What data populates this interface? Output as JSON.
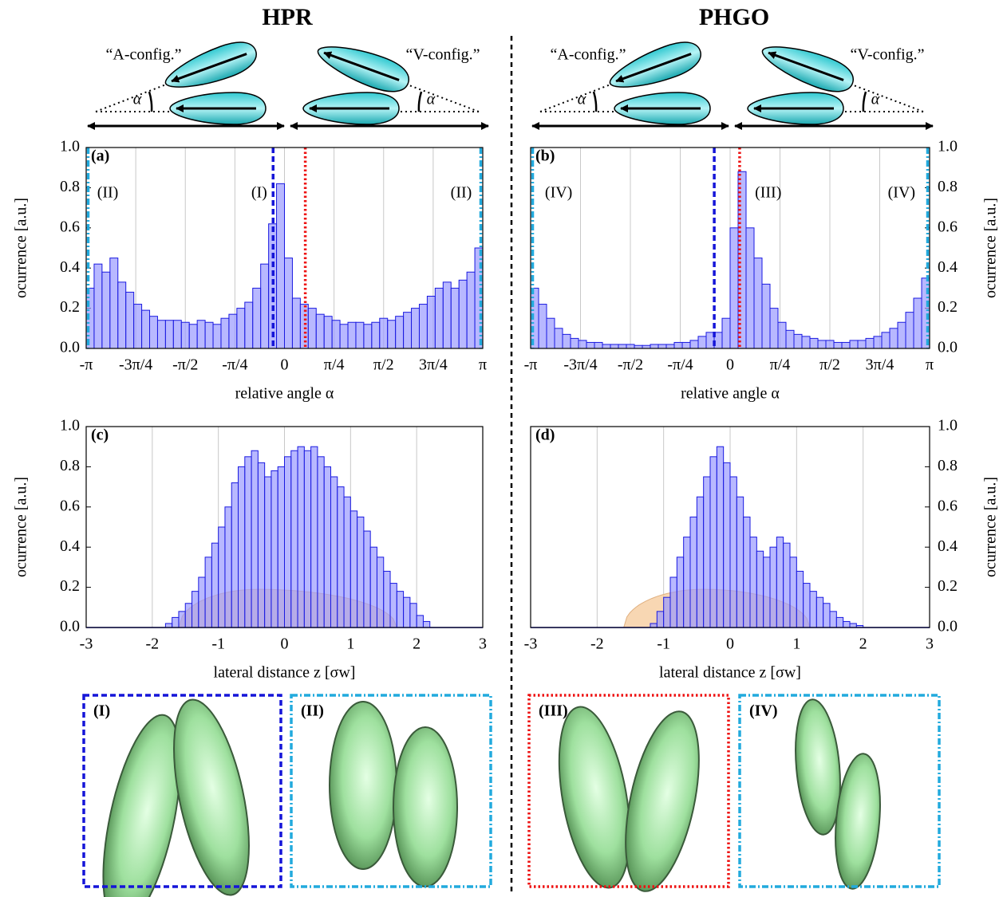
{
  "header": {
    "left": "HPR",
    "right": "PHGO"
  },
  "schematics": [
    {
      "a": "“A-config.”",
      "v": "“V-config.”",
      "alpha": "α"
    },
    {
      "a": "“A-config.”",
      "v": "“V-config.”",
      "alpha": "α"
    }
  ],
  "insets": [
    {
      "label": "(I)",
      "color": "#1515d8",
      "style": "dashed"
    },
    {
      "label": "(II)",
      "color": "#22aadd",
      "style": "dashdot"
    },
    {
      "label": "(III)",
      "color": "#ee1111",
      "style": "dotted"
    },
    {
      "label": "(IV)",
      "color": "#22aadd",
      "style": "dashdot"
    }
  ],
  "chart_data": [
    {
      "type": "histogram",
      "panel_label": "(a)",
      "xlabel": "relative angle α",
      "ylabel": "ocurrence [a.u.]",
      "yaxis": "left",
      "grid": true,
      "color": "#9a9aff",
      "edgecolor": "#1a1ae0",
      "bins": [
        -3.1416,
        -3.0159,
        -2.8903,
        -2.7646,
        -2.6389,
        -2.5133,
        -2.3876,
        -2.2619,
        -2.1363,
        -2.0106,
        -1.885,
        -1.7593,
        -1.6336,
        -1.508,
        -1.3823,
        -1.2566,
        -1.131,
        -1.0053,
        -0.8796,
        -0.754,
        -0.6283,
        -0.5027,
        -0.377,
        -0.2513,
        -0.1257,
        0,
        0.1257,
        0.2513,
        0.377,
        0.5027,
        0.6283,
        0.754,
        0.8796,
        1.0053,
        1.131,
        1.2566,
        1.3823,
        1.508,
        1.6336,
        1.7593,
        1.885,
        2.0106,
        2.1363,
        2.2619,
        2.3876,
        2.5133,
        2.6389,
        2.7646,
        2.8903,
        3.0159,
        3.1416
      ],
      "values": [
        0.3,
        0.42,
        0.38,
        0.45,
        0.33,
        0.28,
        0.22,
        0.19,
        0.16,
        0.14,
        0.14,
        0.14,
        0.13,
        0.12,
        0.14,
        0.13,
        0.12,
        0.15,
        0.17,
        0.2,
        0.23,
        0.3,
        0.42,
        0.62,
        0.82,
        0.45,
        0.25,
        0.22,
        0.2,
        0.17,
        0.16,
        0.14,
        0.12,
        0.13,
        0.13,
        0.12,
        0.13,
        0.15,
        0.14,
        0.16,
        0.18,
        0.2,
        0.22,
        0.26,
        0.3,
        0.33,
        0.3,
        0.34,
        0.38,
        0.5
      ],
      "xlim": [
        -3.1416,
        3.1416
      ],
      "ylim": [
        0,
        1
      ],
      "xticks": [
        {
          "value": -3.1416,
          "label": "-π"
        },
        {
          "value": -2.3562,
          "label": "-3π/4"
        },
        {
          "value": -1.5708,
          "label": "-π/2"
        },
        {
          "value": -0.7854,
          "label": "-π/4"
        },
        0,
        {
          "value": 0.7854,
          "label": "π/4"
        },
        {
          "value": 1.5708,
          "label": "π/2"
        },
        {
          "value": 2.3562,
          "label": "3π/4"
        },
        {
          "value": 3.1416,
          "label": "π"
        }
      ],
      "yticks": [
        {
          "value": 0,
          "label": "0.0"
        },
        {
          "value": 0.2,
          "label": "0.2"
        },
        {
          "value": 0.4,
          "label": "0.4"
        },
        {
          "value": 0.6,
          "label": "0.6"
        },
        {
          "value": 0.8,
          "label": "0.8"
        },
        {
          "value": 1,
          "label": "1.0"
        }
      ],
      "vlines": [
        {
          "value": -0.18,
          "color": "#1515d8",
          "style": "dashed"
        },
        {
          "value": 0.33,
          "color": "#ee1111",
          "style": "dotted"
        },
        {
          "value": -3.11,
          "color": "#22aadd",
          "style": "dashdot"
        },
        {
          "value": 3.11,
          "color": "#22aadd",
          "style": "dashdot"
        }
      ],
      "annotations": [
        {
          "text": "(II)",
          "x": -2.8,
          "y": 0.77,
          "color": "#22aadd"
        },
        {
          "text": "(I)",
          "x": -0.4,
          "y": 0.77,
          "color": "#1515d8"
        },
        {
          "text": "(II)",
          "x": 2.8,
          "y": 0.77,
          "color": "#22aadd"
        }
      ]
    },
    {
      "type": "histogram",
      "panel_label": "(b)",
      "xlabel": "relative angle α",
      "ylabel": "ocurrence [a.u.]",
      "yaxis": "right",
      "grid": true,
      "color": "#9a9aff",
      "edgecolor": "#1a1ae0",
      "bins": [
        -3.1416,
        -3.0159,
        -2.8903,
        -2.7646,
        -2.6389,
        -2.5133,
        -2.3876,
        -2.2619,
        -2.1363,
        -2.0106,
        -1.885,
        -1.7593,
        -1.6336,
        -1.508,
        -1.3823,
        -1.2566,
        -1.131,
        -1.0053,
        -0.8796,
        -0.754,
        -0.6283,
        -0.5027,
        -0.377,
        -0.2513,
        -0.1257,
        0,
        0.1257,
        0.2513,
        0.377,
        0.5027,
        0.6283,
        0.754,
        0.8796,
        1.0053,
        1.131,
        1.2566,
        1.3823,
        1.508,
        1.6336,
        1.7593,
        1.885,
        2.0106,
        2.1363,
        2.2619,
        2.3876,
        2.5133,
        2.6389,
        2.7646,
        2.8903,
        3.0159,
        3.1416
      ],
      "values": [
        0.3,
        0.22,
        0.15,
        0.1,
        0.07,
        0.05,
        0.04,
        0.03,
        0.03,
        0.02,
        0.02,
        0.02,
        0.02,
        0.015,
        0.015,
        0.02,
        0.02,
        0.02,
        0.03,
        0.03,
        0.04,
        0.06,
        0.08,
        0.08,
        0.15,
        0.6,
        0.88,
        0.6,
        0.45,
        0.32,
        0.2,
        0.13,
        0.09,
        0.07,
        0.06,
        0.05,
        0.04,
        0.04,
        0.03,
        0.03,
        0.04,
        0.04,
        0.05,
        0.06,
        0.08,
        0.1,
        0.13,
        0.18,
        0.25,
        0.35
      ],
      "xlim": [
        -3.1416,
        3.1416
      ],
      "ylim": [
        0,
        1
      ],
      "xticks": [
        {
          "value": -3.1416,
          "label": "-π"
        },
        {
          "value": -2.3562,
          "label": "-3π/4"
        },
        {
          "value": -1.5708,
          "label": "-π/2"
        },
        {
          "value": -0.7854,
          "label": "-π/4"
        },
        0,
        {
          "value": 0.7854,
          "label": "π/4"
        },
        {
          "value": 1.5708,
          "label": "π/2"
        },
        {
          "value": 2.3562,
          "label": "3π/4"
        },
        {
          "value": 3.1416,
          "label": "π"
        }
      ],
      "yticks": [
        {
          "value": 0,
          "label": "0.0"
        },
        {
          "value": 0.2,
          "label": "0.2"
        },
        {
          "value": 0.4,
          "label": "0.4"
        },
        {
          "value": 0.6,
          "label": "0.6"
        },
        {
          "value": 0.8,
          "label": "0.8"
        },
        {
          "value": 1,
          "label": "1.0"
        }
      ],
      "vlines": [
        {
          "value": -0.25,
          "color": "#1515d8",
          "style": "dashed"
        },
        {
          "value": 0.15,
          "color": "#ee1111",
          "style": "dotted"
        },
        {
          "value": -3.11,
          "color": "#22aadd",
          "style": "dashdot"
        },
        {
          "value": 3.11,
          "color": "#22aadd",
          "style": "dashdot"
        }
      ],
      "annotations": [
        {
          "text": "(IV)",
          "x": -2.7,
          "y": 0.77,
          "color": "#22aadd"
        },
        {
          "text": "(III)",
          "x": 0.6,
          "y": 0.77,
          "color": "#ee1111"
        },
        {
          "text": "(IV)",
          "x": 2.7,
          "y": 0.77,
          "color": "#22aadd"
        }
      ]
    },
    {
      "type": "histogram",
      "panel_label": "(c)",
      "xlabel": "lateral distance z [σw]",
      "ylabel": "ocurrence [a.u.]",
      "yaxis": "left",
      "grid": true,
      "color": "#9a9aff",
      "edgecolor": "#1a1ae0",
      "bins": [
        -1.8,
        -1.7,
        -1.6,
        -1.5,
        -1.4,
        -1.3,
        -1.2,
        -1.1,
        -1.0,
        -0.9,
        -0.8,
        -0.7,
        -0.6,
        -0.5,
        -0.4,
        -0.3,
        -0.2,
        -0.1,
        0,
        0.1,
        0.2,
        0.3,
        0.4,
        0.5,
        0.6,
        0.7,
        0.8,
        0.9,
        1.0,
        1.1,
        1.2,
        1.3,
        1.4,
        1.5,
        1.6,
        1.7,
        1.8,
        1.9,
        2.0,
        2.1,
        2.2
      ],
      "values": [
        0.02,
        0.05,
        0.08,
        0.12,
        0.18,
        0.25,
        0.35,
        0.42,
        0.5,
        0.6,
        0.72,
        0.8,
        0.85,
        0.88,
        0.82,
        0.75,
        0.78,
        0.8,
        0.85,
        0.88,
        0.9,
        0.88,
        0.9,
        0.85,
        0.8,
        0.75,
        0.7,
        0.65,
        0.58,
        0.55,
        0.48,
        0.4,
        0.35,
        0.28,
        0.22,
        0.18,
        0.15,
        0.12,
        0.06,
        0.03
      ],
      "xlim": [
        -3,
        3
      ],
      "ylim": [
        0,
        1
      ],
      "xticks": [
        -3,
        -2,
        -1,
        0,
        1,
        2,
        3
      ],
      "yticks": [
        {
          "value": 0,
          "label": "0.0"
        },
        {
          "value": 0.2,
          "label": "0.2"
        },
        {
          "value": 0.4,
          "label": "0.4"
        },
        {
          "value": 0.6,
          "label": "0.6"
        },
        {
          "value": 0.8,
          "label": "0.8"
        },
        {
          "value": 1,
          "label": "1.0"
        }
      ],
      "overlay": {
        "x0": -1.6,
        "xpeak": -0.4,
        "x1": 1.7,
        "height": 0.19,
        "color": "#f5c99a"
      }
    },
    {
      "type": "histogram",
      "panel_label": "(d)",
      "xlabel": "lateral distance z [σw]",
      "ylabel": "ocurrence [a.u.]",
      "yaxis": "right",
      "grid": true,
      "color": "#9a9aff",
      "edgecolor": "#1a1ae0",
      "bins": [
        -1.2,
        -1.1,
        -1.0,
        -0.9,
        -0.8,
        -0.7,
        -0.6,
        -0.5,
        -0.4,
        -0.3,
        -0.2,
        -0.1,
        0,
        0.1,
        0.2,
        0.3,
        0.4,
        0.5,
        0.6,
        0.7,
        0.8,
        0.9,
        1.0,
        1.1,
        1.2,
        1.3,
        1.4,
        1.5,
        1.6,
        1.7,
        1.8,
        1.9,
        2.0
      ],
      "values": [
        0.02,
        0.08,
        0.15,
        0.25,
        0.35,
        0.45,
        0.55,
        0.65,
        0.75,
        0.85,
        0.9,
        0.82,
        0.75,
        0.65,
        0.55,
        0.45,
        0.38,
        0.35,
        0.4,
        0.45,
        0.42,
        0.35,
        0.28,
        0.22,
        0.18,
        0.15,
        0.12,
        0.08,
        0.05,
        0.03,
        0.02,
        0.01
      ],
      "xlim": [
        -3,
        3
      ],
      "ylim": [
        0,
        1
      ],
      "xticks": [
        -3,
        -2,
        -1,
        0,
        1,
        2,
        3
      ],
      "yticks": [
        {
          "value": 0,
          "label": "0.0"
        },
        {
          "value": 0.2,
          "label": "0.2"
        },
        {
          "value": 0.4,
          "label": "0.4"
        },
        {
          "value": 0.6,
          "label": "0.6"
        },
        {
          "value": 0.8,
          "label": "0.8"
        },
        {
          "value": 1,
          "label": "1.0"
        }
      ],
      "overlay": {
        "x0": -1.6,
        "xpeak": -0.4,
        "x1": 1.2,
        "height": 0.19,
        "color": "#f5c99a"
      }
    }
  ]
}
